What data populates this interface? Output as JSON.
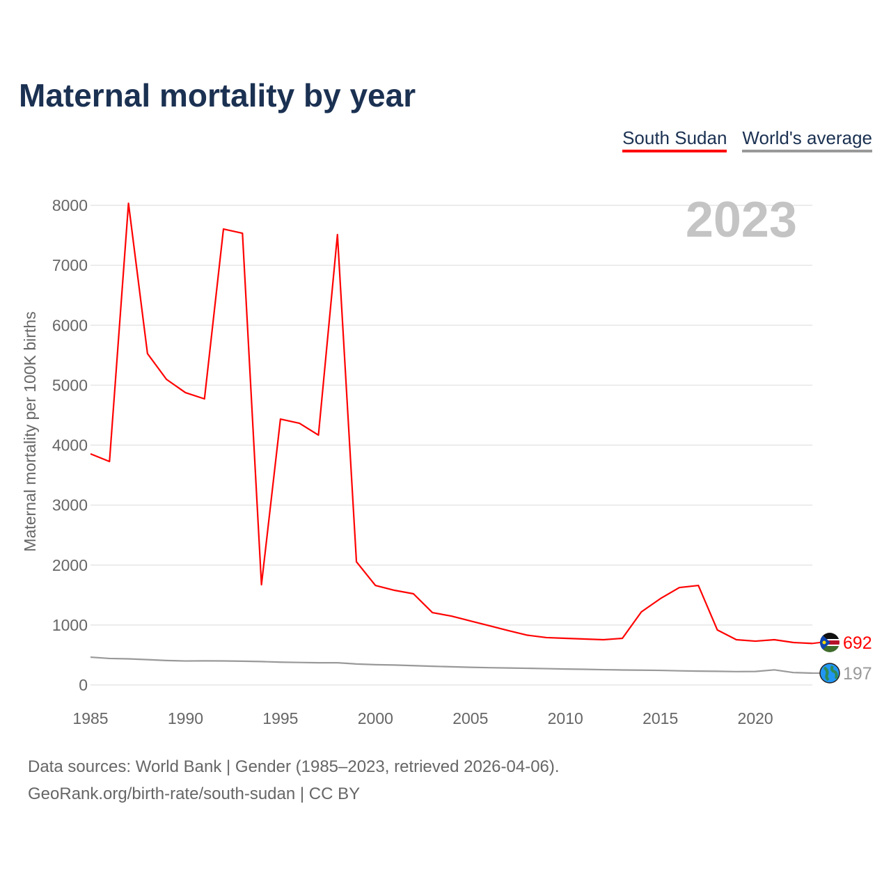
{
  "chart_data": {
    "type": "line",
    "title": "Maternal mortality by year",
    "ylabel": "Maternal mortality per 100K births",
    "xlabel": "",
    "year_label": "2023",
    "xlim": [
      1985,
      2023
    ],
    "ylim": [
      0,
      8000
    ],
    "x_ticks": [
      1985,
      1990,
      1995,
      2000,
      2005,
      2010,
      2015,
      2020
    ],
    "y_ticks": [
      0,
      1000,
      2000,
      3000,
      4000,
      5000,
      6000,
      7000,
      8000
    ],
    "grid": true,
    "legend_position": "top-right",
    "x": [
      1985,
      1986,
      1987,
      1988,
      1989,
      1990,
      1991,
      1992,
      1993,
      1994,
      1995,
      1996,
      1997,
      1998,
      1999,
      2000,
      2001,
      2002,
      2003,
      2004,
      2005,
      2006,
      2007,
      2008,
      2009,
      2010,
      2011,
      2012,
      2013,
      2014,
      2015,
      2016,
      2017,
      2018,
      2019,
      2020,
      2021,
      2022,
      2023
    ],
    "series": [
      {
        "name": "South Sudan",
        "color": "#ff0000",
        "end_label": "692",
        "values": [
          3855,
          3727,
          8034,
          5527,
          5097,
          4876,
          4772,
          7605,
          7535,
          1672,
          4435,
          4365,
          4168,
          7512,
          2055,
          1660,
          1579,
          1521,
          1207,
          1149,
          1068,
          987,
          906,
          830,
          790,
          778,
          766,
          755,
          778,
          1219,
          1440,
          1625,
          1660,
          917,
          755,
          731,
          755,
          708,
          692
        ]
      },
      {
        "name": "World's average",
        "color": "#999999",
        "end_label": "197",
        "values": [
          464,
          442,
          435,
          422,
          408,
          400,
          402,
          401,
          396,
          390,
          380,
          375,
          370,
          370,
          350,
          338,
          332,
          322,
          312,
          303,
          295,
          288,
          283,
          278,
          272,
          266,
          261,
          255,
          250,
          247,
          243,
          236,
          231,
          228,
          223,
          225,
          252,
          207,
          197
        ]
      }
    ]
  },
  "footer": {
    "line1": "Data sources: World Bank | Gender (1985–2023, retrieved 2026-04-06).",
    "line2": "GeoRank.org/birth-rate/south-sudan | CC BY"
  }
}
